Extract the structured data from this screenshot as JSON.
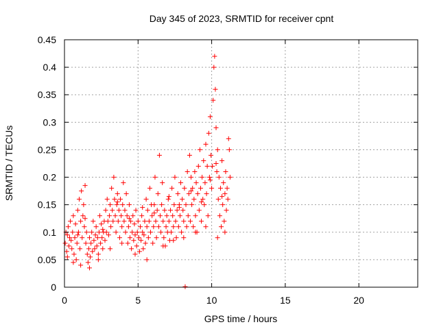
{
  "chart_data": {
    "type": "scatter",
    "title": "Day 345 of 2023, SRMTID for receiver cpnt",
    "xlabel": "GPS time / hours",
    "ylabel": "SRMTID / TECUs",
    "xlim": [
      0,
      24
    ],
    "ylim": [
      0,
      0.45
    ],
    "xticks": [
      0,
      5,
      10,
      15,
      20
    ],
    "xtick_labels": [
      "0",
      "5",
      "10",
      "15",
      "20"
    ],
    "yticks": [
      0,
      0.05,
      0.1,
      0.15,
      0.2,
      0.25,
      0.3,
      0.35,
      0.4,
      0.45
    ],
    "ytick_labels": [
      "0",
      "0.05",
      "0.1",
      "0.15",
      "0.2",
      "0.25",
      "0.3",
      "0.35",
      "0.4",
      "0.45"
    ],
    "grid": true,
    "marker": "+",
    "color": "#ff0000",
    "series": [
      {
        "name": "SRMTID",
        "points": [
          [
            0.05,
            0.08
          ],
          [
            0.1,
            0.1
          ],
          [
            0.15,
            0.065
          ],
          [
            0.2,
            0.095
          ],
          [
            0.25,
            0.11
          ],
          [
            0.3,
            0.075
          ],
          [
            0.35,
            0.09
          ],
          [
            0.4,
            0.12
          ],
          [
            0.45,
            0.085
          ],
          [
            0.5,
            0.07
          ],
          [
            0.55,
            0.1
          ],
          [
            0.6,
            0.13
          ],
          [
            0.65,
            0.06
          ],
          [
            0.7,
            0.09
          ],
          [
            0.75,
            0.115
          ],
          [
            0.8,
            0.05
          ],
          [
            0.85,
            0.08
          ],
          [
            0.9,
            0.14
          ],
          [
            0.95,
            0.1
          ],
          [
            1.0,
            0.16
          ],
          [
            1.05,
            0.07
          ],
          [
            1.1,
            0.12
          ],
          [
            1.15,
            0.175
          ],
          [
            1.2,
            0.09
          ],
          [
            1.25,
            0.13
          ],
          [
            1.3,
            0.15
          ],
          [
            1.35,
            0.11
          ],
          [
            1.4,
            0.185
          ],
          [
            1.45,
            0.08
          ],
          [
            1.5,
            0.1
          ],
          [
            1.55,
            0.06
          ],
          [
            1.6,
            0.045
          ],
          [
            1.65,
            0.07
          ],
          [
            1.7,
            0.09
          ],
          [
            1.75,
            0.055
          ],
          [
            1.8,
            0.08
          ],
          [
            1.85,
            0.1
          ],
          [
            1.9,
            0.065
          ],
          [
            1.95,
            0.12
          ],
          [
            2.0,
            0.085
          ],
          [
            2.05,
            0.07
          ],
          [
            2.1,
            0.095
          ],
          [
            2.15,
            0.11
          ],
          [
            2.2,
            0.075
          ],
          [
            2.25,
            0.09
          ],
          [
            2.3,
            0.06
          ],
          [
            2.35,
            0.1
          ],
          [
            2.4,
            0.13
          ],
          [
            2.45,
            0.08
          ],
          [
            2.5,
            0.115
          ],
          [
            2.55,
            0.09
          ],
          [
            2.6,
            0.07
          ],
          [
            2.65,
            0.1
          ],
          [
            2.7,
            0.12
          ],
          [
            2.75,
            0.085
          ],
          [
            2.8,
            0.14
          ],
          [
            2.85,
            0.1
          ],
          [
            2.9,
            0.16
          ],
          [
            2.95,
            0.12
          ],
          [
            3.0,
            0.095
          ],
          [
            3.05,
            0.13
          ],
          [
            3.1,
            0.15
          ],
          [
            3.15,
            0.11
          ],
          [
            3.2,
            0.18
          ],
          [
            3.25,
            0.14
          ],
          [
            3.3,
            0.12
          ],
          [
            3.35,
            0.2
          ],
          [
            3.4,
            0.16
          ],
          [
            3.45,
            0.13
          ],
          [
            3.5,
            0.1
          ],
          [
            3.55,
            0.15
          ],
          [
            3.6,
            0.17
          ],
          [
            3.65,
            0.12
          ],
          [
            3.7,
            0.14
          ],
          [
            3.75,
            0.09
          ],
          [
            3.8,
            0.16
          ],
          [
            3.85,
            0.13
          ],
          [
            3.9,
            0.11
          ],
          [
            3.95,
            0.15
          ],
          [
            4.0,
            0.19
          ],
          [
            4.05,
            0.12
          ],
          [
            4.1,
            0.14
          ],
          [
            4.15,
            0.1
          ],
          [
            4.2,
            0.17
          ],
          [
            4.25,
            0.13
          ],
          [
            4.3,
            0.08
          ],
          [
            4.35,
            0.11
          ],
          [
            4.4,
            0.15
          ],
          [
            4.45,
            0.09
          ],
          [
            4.5,
            0.12
          ],
          [
            4.55,
            0.07
          ],
          [
            4.6,
            0.1
          ],
          [
            4.65,
            0.13
          ],
          [
            4.7,
            0.085
          ],
          [
            4.75,
            0.115
          ],
          [
            4.8,
            0.095
          ],
          [
            4.85,
            0.14
          ],
          [
            4.9,
            0.075
          ],
          [
            4.95,
            0.1
          ],
          [
            5.0,
            0.12
          ],
          [
            5.05,
            0.09
          ],
          [
            5.1,
            0.065
          ],
          [
            5.15,
            0.11
          ],
          [
            5.2,
            0.085
          ],
          [
            5.25,
            0.13
          ],
          [
            5.3,
            0.1
          ],
          [
            5.35,
            0.07
          ],
          [
            5.4,
            0.095
          ],
          [
            5.45,
            0.12
          ],
          [
            5.5,
            0.08
          ],
          [
            5.55,
            0.16
          ],
          [
            5.6,
            0.11
          ],
          [
            5.65,
            0.14
          ],
          [
            5.7,
            0.09
          ],
          [
            5.75,
            0.12
          ],
          [
            5.8,
            0.18
          ],
          [
            5.85,
            0.1
          ],
          [
            5.9,
            0.15
          ],
          [
            5.95,
            0.13
          ],
          [
            6.0,
            0.08
          ],
          [
            6.05,
            0.11
          ],
          [
            6.1,
            0.15
          ],
          [
            6.15,
            0.2
          ],
          [
            6.2,
            0.12
          ],
          [
            6.25,
            0.09
          ],
          [
            6.3,
            0.14
          ],
          [
            6.35,
            0.17
          ],
          [
            6.4,
            0.11
          ],
          [
            6.45,
            0.24
          ],
          [
            6.5,
            0.13
          ],
          [
            6.55,
            0.1
          ],
          [
            6.6,
            0.15
          ],
          [
            6.65,
            0.19
          ],
          [
            6.7,
            0.12
          ],
          [
            6.75,
            0.09
          ],
          [
            6.8,
            0.14
          ],
          [
            6.85,
            0.075
          ],
          [
            6.9,
            0.11
          ],
          [
            6.95,
            0.13
          ],
          [
            7.0,
            0.1
          ],
          [
            7.05,
            0.16
          ],
          [
            7.1,
            0.12
          ],
          [
            7.15,
            0.085
          ],
          [
            7.2,
            0.14
          ],
          [
            7.25,
            0.1
          ],
          [
            7.3,
            0.18
          ],
          [
            7.35,
            0.13
          ],
          [
            7.4,
            0.11
          ],
          [
            7.45,
            0.15
          ],
          [
            7.5,
            0.2
          ],
          [
            7.55,
            0.12
          ],
          [
            7.6,
            0.09
          ],
          [
            7.65,
            0.14
          ],
          [
            7.7,
            0.17
          ],
          [
            7.75,
            0.11
          ],
          [
            7.8,
            0.15
          ],
          [
            7.85,
            0.13
          ],
          [
            7.9,
            0.19
          ],
          [
            7.95,
            0.1
          ],
          [
            8.0,
            0.16
          ],
          [
            8.05,
            0.14
          ],
          [
            8.1,
            0.12
          ],
          [
            8.15,
            0.18
          ],
          [
            8.2,
            0.001
          ],
          [
            8.25,
            0.15
          ],
          [
            8.3,
            0.11
          ],
          [
            8.35,
            0.21
          ],
          [
            8.4,
            0.13
          ],
          [
            8.45,
            0.17
          ],
          [
            8.5,
            0.24
          ],
          [
            8.55,
            0.12
          ],
          [
            8.6,
            0.2
          ],
          [
            8.65,
            0.15
          ],
          [
            8.7,
            0.18
          ],
          [
            8.75,
            0.11
          ],
          [
            8.8,
            0.16
          ],
          [
            8.85,
            0.21
          ],
          [
            8.9,
            0.13
          ],
          [
            8.95,
            0.19
          ],
          [
            9.0,
            0.1
          ],
          [
            9.05,
            0.17
          ],
          [
            9.1,
            0.22
          ],
          [
            9.15,
            0.14
          ],
          [
            9.2,
            0.25
          ],
          [
            9.25,
            0.18
          ],
          [
            9.3,
            0.12
          ],
          [
            9.35,
            0.2
          ],
          [
            9.4,
            0.16
          ],
          [
            9.45,
            0.23
          ],
          [
            9.5,
            0.15
          ],
          [
            9.55,
            0.19
          ],
          [
            9.6,
            0.26
          ],
          [
            9.65,
            0.17
          ],
          [
            9.7,
            0.22
          ],
          [
            9.75,
            0.13
          ],
          [
            9.8,
            0.28
          ],
          [
            9.85,
            0.2
          ],
          [
            9.9,
            0.31
          ],
          [
            9.95,
            0.24
          ],
          [
            10.0,
            0.18
          ],
          [
            10.05,
            0.22
          ],
          [
            10.1,
            0.34
          ],
          [
            10.15,
            0.4
          ],
          [
            10.2,
            0.42
          ],
          [
            10.25,
            0.36
          ],
          [
            10.3,
            0.29
          ],
          [
            10.35,
            0.21
          ],
          [
            10.4,
            0.25
          ],
          [
            10.45,
            0.16
          ],
          [
            10.5,
            0.2
          ],
          [
            10.55,
            0.13
          ],
          [
            10.6,
            0.18
          ],
          [
            10.65,
            0.11
          ],
          [
            10.7,
            0.23
          ],
          [
            10.75,
            0.15
          ],
          [
            10.8,
            0.19
          ],
          [
            10.85,
            0.12
          ],
          [
            10.9,
            0.17
          ],
          [
            10.95,
            0.21
          ],
          [
            11.0,
            0.14
          ],
          [
            11.05,
            0.18
          ],
          [
            11.1,
            0.16
          ],
          [
            11.15,
            0.27
          ],
          [
            11.2,
            0.25
          ],
          [
            11.25,
            0.2
          ],
          [
            0.2,
            0.055
          ],
          [
            0.6,
            0.045
          ],
          [
            1.1,
            0.04
          ],
          [
            1.7,
            0.035
          ],
          [
            2.3,
            0.05
          ],
          [
            3.1,
            0.07
          ],
          [
            3.9,
            0.08
          ],
          [
            4.8,
            0.06
          ],
          [
            5.6,
            0.05
          ],
          [
            6.7,
            0.075
          ],
          [
            7.4,
            0.085
          ],
          [
            8.1,
            0.09
          ],
          [
            8.9,
            0.1
          ],
          [
            9.6,
            0.11
          ],
          [
            10.4,
            0.09
          ],
          [
            10.9,
            0.1
          ],
          [
            0.9,
            0.095
          ],
          [
            2.6,
            0.105
          ],
          [
            4.4,
            0.125
          ],
          [
            6.1,
            0.135
          ],
          [
            7.8,
            0.145
          ],
          [
            9.3,
            0.155
          ],
          [
            10.7,
            0.165
          ],
          [
            1.4,
            0.125
          ],
          [
            3.6,
            0.155
          ],
          [
            5.3,
            0.145
          ],
          [
            7.1,
            0.165
          ],
          [
            8.6,
            0.175
          ],
          [
            9.9,
            0.195
          ],
          [
            10.3,
            0.225
          ]
        ]
      }
    ]
  }
}
